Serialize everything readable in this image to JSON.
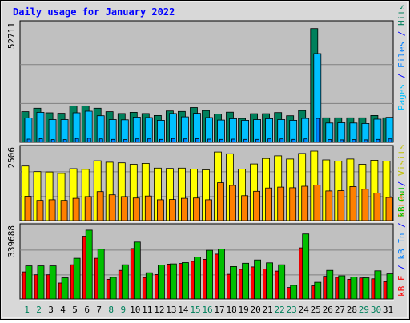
{
  "title": "Daily usage for January 2022",
  "colors": {
    "hits": "#00805c",
    "files": "#00c0ff",
    "pages": "#0080ff",
    "visits": "#ffff00",
    "sites": "#ff8000",
    "kbin": "#00c000",
    "kbout": "#ff0000",
    "title": "#0000ff",
    "panel": "#c0c0c0",
    "frame": "#d0d0d0",
    "weekend": "#00805c",
    "weekday": "#000000"
  },
  "panel_labels": {
    "top": [
      {
        "text": "Pages",
        "color": "#00c0ff"
      },
      {
        "text": " / ",
        "color": "#0000ff"
      },
      {
        "text": "Files",
        "color": "#0080ff"
      },
      {
        "text": " / ",
        "color": "#0000ff"
      },
      {
        "text": "Hits",
        "color": "#00805c"
      }
    ],
    "middle": [
      {
        "text": "Sites",
        "color": "#ff8000"
      },
      {
        "text": " / ",
        "color": "#0000ff"
      },
      {
        "text": "Visits",
        "color": "#c0c000"
      }
    ],
    "bottom": [
      {
        "text": "kB F",
        "color": "#ff0000"
      },
      {
        "text": " / ",
        "color": "#0000ff"
      },
      {
        "text": "kB In",
        "color": "#0080ff"
      },
      {
        "text": " / ",
        "color": "#0000ff"
      },
      {
        "text": "kB Out",
        "color": "#00c000"
      }
    ]
  },
  "chart_data": [
    {
      "type": "bar",
      "panel": "hits-files-pages",
      "ymax_label": "52711",
      "ylim": [
        0,
        52711
      ],
      "categories": [
        "1",
        "2",
        "3",
        "4",
        "5",
        "6",
        "7",
        "8",
        "9",
        "10",
        "11",
        "12",
        "13",
        "14",
        "15",
        "16",
        "17",
        "18",
        "19",
        "20",
        "21",
        "22",
        "23",
        "24",
        "25",
        "26",
        "27",
        "28",
        "29",
        "30",
        "31"
      ],
      "weekend_days": [
        "1",
        "2",
        "8",
        "9",
        "15",
        "16",
        "22",
        "23",
        "29",
        "30"
      ],
      "series": [
        {
          "name": "Hits",
          "values": [
            13500,
            15000,
            13000,
            12800,
            16000,
            16000,
            15000,
            13500,
            12700,
            13200,
            12700,
            11800,
            13800,
            13600,
            15300,
            14000,
            12500,
            13300,
            10500,
            12600,
            12600,
            13100,
            11700,
            14000,
            50000,
            10800,
            10800,
            10800,
            10800,
            11800,
            10800
          ]
        },
        {
          "name": "Files",
          "values": [
            10700,
            13200,
            10000,
            10000,
            13000,
            13700,
            11700,
            10000,
            9900,
            11100,
            10900,
            9700,
            12700,
            11200,
            12800,
            10900,
            9800,
            10400,
            9700,
            10000,
            10400,
            10000,
            9700,
            10500,
            39000,
            8500,
            8600,
            8500,
            8300,
            10200,
            11000
          ]
        },
        {
          "name": "Pages",
          "values": [
            1400,
            1600,
            1200,
            1200,
            1700,
            1800,
            1500,
            1300,
            1200,
            1500,
            1500,
            1300,
            1700,
            1500,
            1600,
            1400,
            1300,
            1400,
            1300,
            1300,
            1500,
            1500,
            1300,
            1500,
            10500,
            1200,
            1100,
            1200,
            1100,
            1300,
            1500
          ]
        }
      ]
    },
    {
      "type": "bar",
      "panel": "visits-sites",
      "ymax_label": "2506",
      "ylim": [
        0,
        2506
      ],
      "series": [
        {
          "name": "Visits",
          "values": [
            1860,
            1670,
            1660,
            1610,
            1770,
            1750,
            2040,
            1990,
            1970,
            1920,
            1950,
            1790,
            1780,
            1790,
            1760,
            1730,
            2340,
            2280,
            1760,
            1930,
            2120,
            2210,
            2100,
            2290,
            2370,
            2070,
            2030,
            2100,
            1920,
            2060,
            2030
          ]
        },
        {
          "name": "Sites",
          "values": [
            830,
            690,
            710,
            690,
            760,
            820,
            990,
            880,
            820,
            770,
            840,
            710,
            720,
            760,
            770,
            710,
            1290,
            1200,
            850,
            1000,
            1110,
            1140,
            1120,
            1170,
            1210,
            1010,
            1020,
            1160,
            1070,
            940,
            790
          ]
        }
      ]
    },
    {
      "type": "bar",
      "panel": "kb-in-out",
      "ymax_label": "339688",
      "ylim": [
        0,
        339688
      ],
      "series": [
        {
          "name": "kB F",
          "values": [
            0,
            0,
            0,
            0,
            0,
            0,
            0,
            0,
            0,
            0,
            0,
            0,
            0,
            0,
            0,
            0,
            0,
            0,
            0,
            0,
            0,
            0,
            0,
            0,
            0,
            0,
            0,
            0,
            0,
            0,
            0
          ]
        },
        {
          "name": "kB In",
          "values": [
            125000,
            112000,
            112000,
            74000,
            158000,
            290000,
            188000,
            91000,
            132000,
            233000,
            99000,
            113000,
            161000,
            164000,
            174000,
            183000,
            207000,
            114000,
            137000,
            148000,
            138000,
            129000,
            53000,
            236000,
            61000,
            105000,
            100000,
            91000,
            97000,
            93000,
            80000
          ]
        },
        {
          "name": "kB Out",
          "values": [
            153000,
            153000,
            153000,
            98000,
            188000,
            318000,
            230000,
            100000,
            158000,
            263000,
            121000,
            157000,
            162000,
            168000,
            194000,
            225000,
            231000,
            150000,
            165000,
            180000,
            167000,
            158000,
            63000,
            300000,
            77000,
            132000,
            107000,
            101000,
            98000,
            130000,
            116000
          ]
        }
      ]
    }
  ]
}
